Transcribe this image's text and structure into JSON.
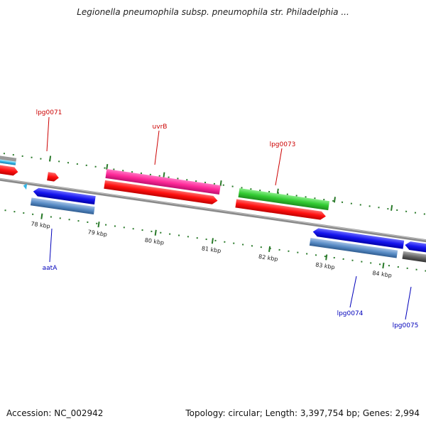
{
  "header": {
    "title": "Legionella pneumophila subsp. pneumophila str. Philadelphia ..."
  },
  "footer": {
    "accession": "Accession: NC_002942",
    "topology": "Topology: circular; Length: 3,397,754 bp; Genes: 2,994"
  },
  "colors": {
    "forward_label": "#cc0000",
    "reverse_label": "#0000bb",
    "backbone": "#8a8a8a",
    "tick": "#2a7a2a"
  },
  "scale": {
    "kbp_labels": [
      "78 kbp",
      "79 kbp",
      "80 kbp",
      "81 kbp",
      "82 kbp",
      "83 kbp",
      "84 kbp"
    ]
  },
  "genes": [
    {
      "label": "",
      "strand": "forward",
      "kind": "gene",
      "color": "#ff2020"
    },
    {
      "label": "lpg0071",
      "strand": "forward",
      "kind": "gene",
      "color": "#ff2020"
    },
    {
      "label": "uvrB",
      "strand": "forward",
      "kind": "product",
      "color": "#ff3399"
    },
    {
      "label": "uvrB",
      "strand": "forward",
      "kind": "gene",
      "color": "#ff1a1a"
    },
    {
      "label": "lpg0073",
      "strand": "forward",
      "kind": "product",
      "color": "#33cc33"
    },
    {
      "label": "lpg0073",
      "strand": "forward",
      "kind": "gene",
      "color": "#ff1a1a"
    },
    {
      "label": "aatA",
      "strand": "reverse",
      "kind": "product",
      "color": "#1a1aee"
    },
    {
      "label": "aatA",
      "strand": "reverse",
      "kind": "gene",
      "color": "#5b8ec7"
    },
    {
      "label": "lpg0074",
      "strand": "reverse",
      "kind": "product",
      "color": "#1a1aee"
    },
    {
      "label": "lpg0074",
      "strand": "reverse",
      "kind": "gene",
      "color": "#5b8ec7"
    },
    {
      "label": "lpg0075",
      "strand": "reverse",
      "kind": "product",
      "color": "#1a1aee"
    },
    {
      "label": "lpg0075",
      "strand": "reverse",
      "kind": "gene",
      "color": "#666666"
    }
  ]
}
